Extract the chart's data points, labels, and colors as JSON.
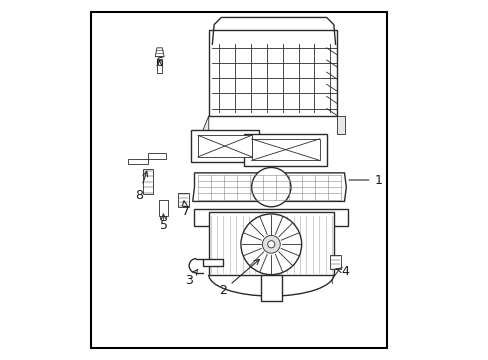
{
  "background_color": "#ffffff",
  "border_color": "#000000",
  "line_color": "#2a2a2a",
  "text_color": "#1a1a1a",
  "fig_width": 4.89,
  "fig_height": 3.6,
  "dpi": 100,
  "border": [
    0.07,
    0.03,
    0.9,
    0.97
  ]
}
